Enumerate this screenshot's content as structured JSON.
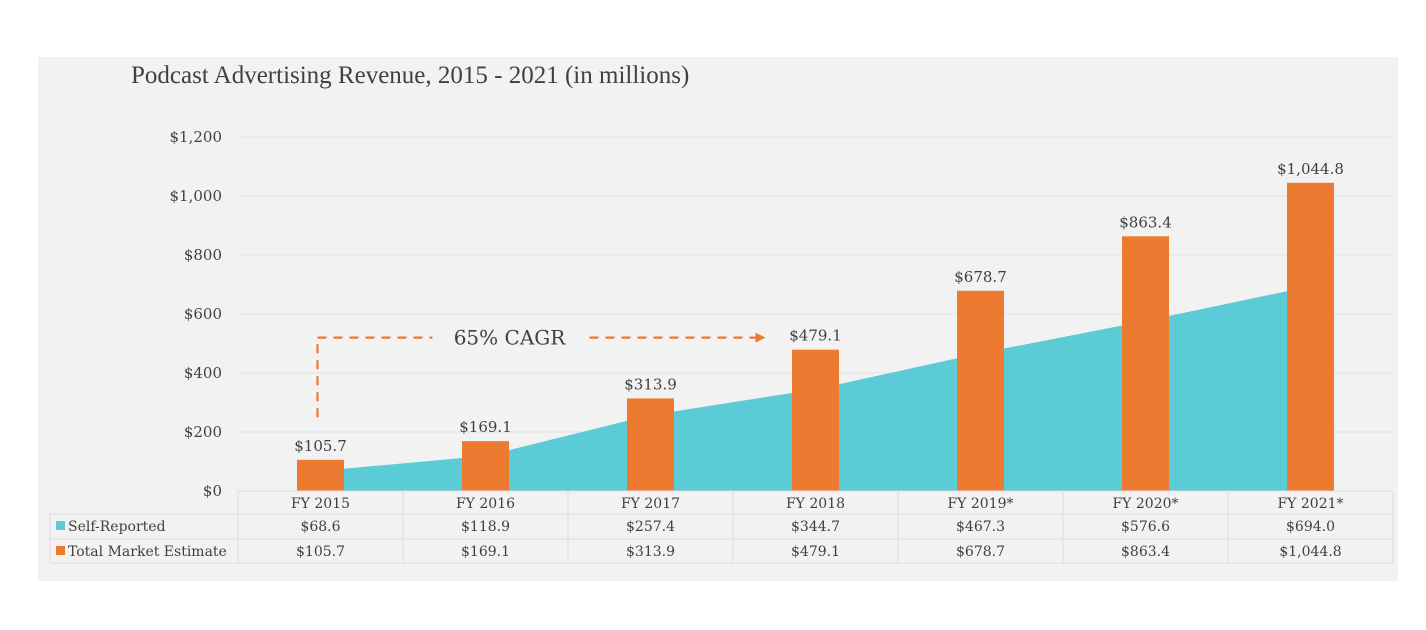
{
  "chart_data": {
    "type": "bar",
    "title": "Podcast Advertising Revenue, 2015 - 2021 (in millions)",
    "xlabel": "",
    "ylabel": "",
    "ylim": [
      0,
      1200
    ],
    "yticks": [
      0,
      200,
      400,
      600,
      800,
      1000,
      1200
    ],
    "ytick_labels": [
      "$0",
      "$200",
      "$400",
      "$600",
      "$800",
      "$1,000",
      "$1,200"
    ],
    "grid": true,
    "categories": [
      "FY 2015",
      "FY 2016",
      "FY 2017",
      "FY 2018",
      "FY 2019*",
      "FY 2020*",
      "FY 2021*"
    ],
    "series": [
      {
        "name": "Self-Reported",
        "type": "area",
        "color": "#5bccd6",
        "values": [
          68.6,
          118.9,
          257.4,
          344.7,
          467.3,
          576.6,
          694.0
        ],
        "display": [
          "$68.6",
          "$118.9",
          "$257.4",
          "$344.7",
          "$467.3",
          "$576.6",
          "$694.0"
        ]
      },
      {
        "name": "Total Market Estimate",
        "type": "bar",
        "color": "#ed7a31",
        "values": [
          105.7,
          169.1,
          313.9,
          479.1,
          678.7,
          863.4,
          1044.8
        ],
        "display": [
          "$105.7",
          "$169.1",
          "$313.9",
          "$479.1",
          "$678.7",
          "$863.4",
          "$1,044.8"
        ]
      }
    ],
    "annotation": {
      "text": "65% CAGR",
      "from_category": "FY 2015",
      "to_category": "FY 2018",
      "level": 520,
      "color": "#ed7a31"
    },
    "legend": "data-table-bottom",
    "data_table": true
  }
}
